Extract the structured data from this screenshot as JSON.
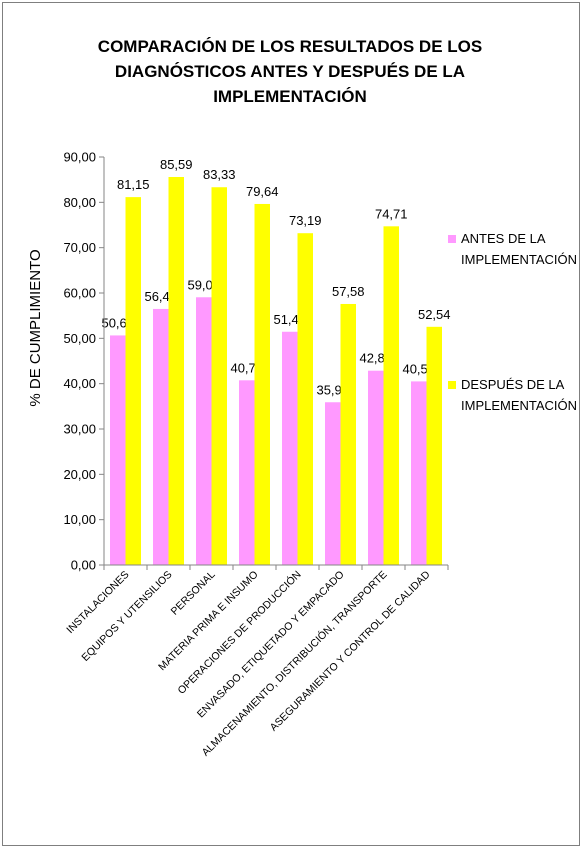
{
  "chart_data": {
    "type": "bar",
    "title_lines": [
      "COMPARACIÓN DE LOS RESULTADOS DE LOS",
      "DIAGNÓSTICOS ANTES Y DESPUÉS DE LA",
      "IMPLEMENTACIÓN"
    ],
    "ylabel": "% DE CUMPLIMIENTO",
    "xlabel": "",
    "ylim": [
      0,
      90
    ],
    "y_ticks": [
      "0,00",
      "10,00",
      "20,00",
      "30,00",
      "40,00",
      "50,00",
      "60,00",
      "70,00",
      "80,00",
      "90,00"
    ],
    "categories": [
      "INSTALACIONES",
      "EQUIPOS Y UTENSILIOS",
      "PERSONAL",
      "MATERIA PRIMA E INSUMO",
      "OPERACIONES DE PRODUCCIÓN",
      "ENVASADO, ETIQUETADO Y EMPACADO",
      "ALMACENAMIENTO, DISTRIBUCIÓN, TRANSPORTE",
      "ASEGURAMIENTO Y CONTROL DE CALIDAD"
    ],
    "series": [
      {
        "legend_lines": [
          "ANTES DE LA",
          "IMPLEMENTACIÓN"
        ],
        "color": "#ff99ff",
        "values": [
          50.64,
          56.48,
          59.06,
          40.74,
          51.45,
          35.9,
          42.86,
          40.5
        ],
        "labels": [
          "50,64",
          "56,48",
          "59,06",
          "40,74",
          "51,45",
          "35,90",
          "42,86",
          "40,50"
        ]
      },
      {
        "legend_lines": [
          "DESPUÉS DE LA",
          "IMPLEMENTACIÓN"
        ],
        "color": "#ffff00",
        "values": [
          81.15,
          85.59,
          83.33,
          79.64,
          73.19,
          57.58,
          74.71,
          52.54
        ],
        "labels": [
          "81,15",
          "85,59",
          "83,33",
          "79,64",
          "73,19",
          "57,58",
          "74,71",
          "52,54"
        ]
      }
    ],
    "grid": false,
    "legend_position": "right"
  }
}
